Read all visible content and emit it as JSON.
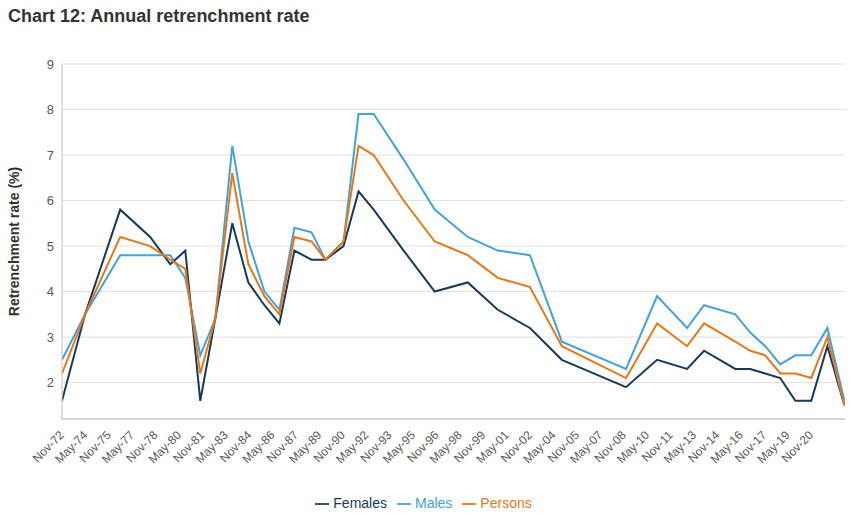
{
  "chart_data": {
    "type": "line",
    "title": "Chart 12: Annual retrenchment rate",
    "y_label": "Retrenchment rate (%)",
    "x": [
      1972.83,
      1974.31,
      1976.56,
      1978.48,
      1979.77,
      1980.73,
      1981.69,
      1982.65,
      1983.74,
      1984.77,
      1985.8,
      1986.76,
      1987.72,
      1988.82,
      1989.71,
      1990.87,
      1991.83,
      1992.8,
      1994.72,
      1996.71,
      1998.83,
      2000.75,
      2002.81,
      2004.86,
      2008.97,
      2010.96,
      2012.88,
      2013.97,
      2015.97,
      2016.93,
      2017.89,
      2018.85,
      2019.82,
      2020.84,
      2021.87,
      2022.96
    ],
    "series": [
      {
        "name": "Males",
        "color": "#45a2d8",
        "values": [
          2.5,
          3.5,
          4.8,
          4.8,
          4.8,
          4.3,
          2.6,
          3.4,
          7.2,
          5.1,
          4.0,
          3.6,
          5.4,
          5.3,
          4.7,
          5.1,
          7.9,
          7.9,
          6.9,
          5.8,
          5.2,
          4.9,
          4.8,
          2.9,
          2.3,
          3.9,
          3.2,
          3.7,
          3.5,
          3.1,
          2.8,
          2.4,
          2.6,
          2.6,
          3.2,
          1.6
        ]
      },
      {
        "name": "Females",
        "color": "#173a5c",
        "values": [
          1.6,
          3.5,
          5.8,
          5.2,
          4.6,
          4.9,
          1.6,
          3.4,
          5.5,
          4.2,
          3.7,
          3.3,
          4.9,
          4.7,
          4.7,
          5.0,
          6.2,
          5.8,
          4.9,
          4.0,
          4.2,
          3.6,
          3.2,
          2.5,
          1.9,
          2.5,
          2.3,
          2.7,
          2.3,
          2.3,
          2.2,
          2.1,
          1.6,
          1.6,
          2.8,
          1.5
        ]
      },
      {
        "name": "Persons",
        "color": "#e5781c",
        "values": [
          2.2,
          3.5,
          5.2,
          5.0,
          4.7,
          4.5,
          2.2,
          3.4,
          6.6,
          4.6,
          3.9,
          3.5,
          5.2,
          5.1,
          4.7,
          5.1,
          7.2,
          7.0,
          6.0,
          5.1,
          4.8,
          4.3,
          4.1,
          2.8,
          2.1,
          3.3,
          2.8,
          3.3,
          2.9,
          2.7,
          2.6,
          2.2,
          2.2,
          2.1,
          3.0,
          1.5
        ]
      }
    ],
    "xlim": [
      1972.83,
      2023.0
    ],
    "xticks": [
      {
        "value": 1972.83,
        "label": "Nov-72"
      },
      {
        "value": 1974.33,
        "label": "May-74"
      },
      {
        "value": 1975.83,
        "label": "Nov-75"
      },
      {
        "value": 1977.33,
        "label": "May-77"
      },
      {
        "value": 1978.83,
        "label": "Nov-78"
      },
      {
        "value": 1980.33,
        "label": "May-80"
      },
      {
        "value": 1981.83,
        "label": "Nov-81"
      },
      {
        "value": 1983.33,
        "label": "May-83"
      },
      {
        "value": 1984.83,
        "label": "Nov-84"
      },
      {
        "value": 1986.33,
        "label": "May-86"
      },
      {
        "value": 1987.83,
        "label": "Nov-87"
      },
      {
        "value": 1989.33,
        "label": "May-89"
      },
      {
        "value": 1990.83,
        "label": "Nov-90"
      },
      {
        "value": 1992.33,
        "label": "May-92"
      },
      {
        "value": 1993.83,
        "label": "Nov-93"
      },
      {
        "value": 1995.33,
        "label": "May-95"
      },
      {
        "value": 1996.83,
        "label": "Nov-96"
      },
      {
        "value": 1998.33,
        "label": "May-98"
      },
      {
        "value": 1999.83,
        "label": "Nov-99"
      },
      {
        "value": 2001.33,
        "label": "May-01"
      },
      {
        "value": 2002.83,
        "label": "Nov-02"
      },
      {
        "value": 2004.33,
        "label": "May-04"
      },
      {
        "value": 2005.83,
        "label": "Nov-05"
      },
      {
        "value": 2007.33,
        "label": "May-07"
      },
      {
        "value": 2008.83,
        "label": "Nov-08"
      },
      {
        "value": 2010.33,
        "label": "May-10"
      },
      {
        "value": 2011.83,
        "label": "Nov-11"
      },
      {
        "value": 2013.33,
        "label": "May-13"
      },
      {
        "value": 2014.83,
        "label": "Nov-14"
      },
      {
        "value": 2016.33,
        "label": "May-16"
      },
      {
        "value": 2017.83,
        "label": "Nov-17"
      },
      {
        "value": 2019.33,
        "label": "May-19"
      },
      {
        "value": 2020.83,
        "label": "Nov-20"
      }
    ],
    "ylim": [
      1.2,
      9
    ],
    "yticks": [
      2,
      3,
      4,
      5,
      6,
      7,
      8,
      9
    ],
    "grid": true,
    "legend": "bottom"
  }
}
